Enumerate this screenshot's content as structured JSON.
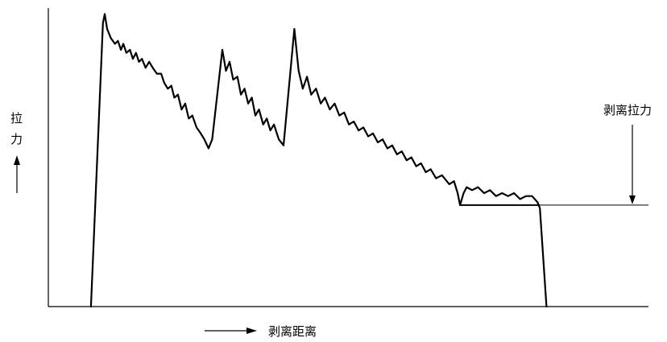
{
  "chart_data": {
    "type": "line",
    "title": "",
    "xlabel": "剥离距离",
    "ylabel_chars": [
      "拉",
      "力"
    ],
    "annotations": [
      {
        "text": "剥离拉力"
      }
    ],
    "grid": false,
    "axis_ticks": false,
    "colors": {
      "line": "#000000",
      "background": "#ffffff"
    },
    "ylim": [
      0,
      100
    ],
    "xlim": [
      0,
      100
    ],
    "peel_force_level": 34,
    "series": [
      {
        "points": [
          [
            7.1,
            0
          ],
          [
            9.1,
            95
          ],
          [
            9.4,
            98
          ],
          [
            9.8,
            93
          ],
          [
            10.4,
            90
          ],
          [
            11.1,
            88
          ],
          [
            11.6,
            89
          ],
          [
            12.1,
            86
          ],
          [
            12.5,
            88
          ],
          [
            13.0,
            85
          ],
          [
            13.6,
            86
          ],
          [
            14.1,
            83
          ],
          [
            14.6,
            85
          ],
          [
            15.1,
            82
          ],
          [
            15.6,
            83
          ],
          [
            16.2,
            80
          ],
          [
            16.8,
            82
          ],
          [
            17.4,
            80
          ],
          [
            18.1,
            78
          ],
          [
            18.8,
            78
          ],
          [
            19.3,
            75
          ],
          [
            19.9,
            73
          ],
          [
            20.5,
            74
          ],
          [
            21.0,
            70
          ],
          [
            21.6,
            71
          ],
          [
            22.2,
            66
          ],
          [
            22.8,
            68
          ],
          [
            23.4,
            63
          ],
          [
            24.0,
            64
          ],
          [
            24.7,
            60
          ],
          [
            25.4,
            58
          ],
          [
            26.0,
            56
          ],
          [
            26.7,
            53
          ],
          [
            27.3,
            56
          ],
          [
            29.0,
            86
          ],
          [
            29.6,
            79
          ],
          [
            30.2,
            82
          ],
          [
            30.8,
            76
          ],
          [
            31.5,
            77
          ],
          [
            32.1,
            71
          ],
          [
            32.7,
            73
          ],
          [
            33.3,
            68
          ],
          [
            33.9,
            70
          ],
          [
            34.5,
            64
          ],
          [
            35.1,
            66
          ],
          [
            35.8,
            61
          ],
          [
            36.4,
            63
          ],
          [
            37.0,
            59
          ],
          [
            37.6,
            61
          ],
          [
            38.4,
            56
          ],
          [
            39.2,
            54
          ],
          [
            41.0,
            93
          ],
          [
            41.7,
            79
          ],
          [
            42.4,
            73
          ],
          [
            43.1,
            77
          ],
          [
            43.8,
            71
          ],
          [
            44.6,
            73
          ],
          [
            45.4,
            68
          ],
          [
            46.1,
            70
          ],
          [
            46.9,
            66
          ],
          [
            47.7,
            68
          ],
          [
            48.5,
            64
          ],
          [
            49.3,
            65
          ],
          [
            50.1,
            61
          ],
          [
            50.9,
            62
          ],
          [
            51.7,
            59
          ],
          [
            52.5,
            60
          ],
          [
            53.3,
            57
          ],
          [
            54.1,
            58
          ],
          [
            54.9,
            55
          ],
          [
            55.7,
            56
          ],
          [
            56.5,
            53
          ],
          [
            57.3,
            54
          ],
          [
            58.1,
            51
          ],
          [
            58.9,
            52
          ],
          [
            59.7,
            49
          ],
          [
            60.5,
            50
          ],
          [
            61.3,
            47
          ],
          [
            62.1,
            48
          ],
          [
            62.9,
            45
          ],
          [
            63.7,
            46
          ],
          [
            64.6,
            43
          ],
          [
            65.6,
            44
          ],
          [
            66.8,
            41
          ],
          [
            67.6,
            42
          ],
          [
            68.2,
            38
          ],
          [
            68.6,
            34
          ],
          [
            69.2,
            38
          ],
          [
            69.7,
            40
          ],
          [
            70.6,
            39
          ],
          [
            71.6,
            40
          ],
          [
            72.6,
            38
          ],
          [
            73.6,
            39
          ],
          [
            74.6,
            37
          ],
          [
            75.6,
            38
          ],
          [
            76.6,
            37
          ],
          [
            77.6,
            38
          ],
          [
            78.6,
            36
          ],
          [
            79.6,
            37
          ],
          [
            80.6,
            37
          ],
          [
            81.5,
            35
          ],
          [
            81.9,
            33
          ],
          [
            83.0,
            0
          ]
        ]
      },
      {
        "role": "peel-force-level",
        "points": [
          [
            68.6,
            34
          ],
          [
            81.9,
            34
          ]
        ]
      }
    ]
  }
}
